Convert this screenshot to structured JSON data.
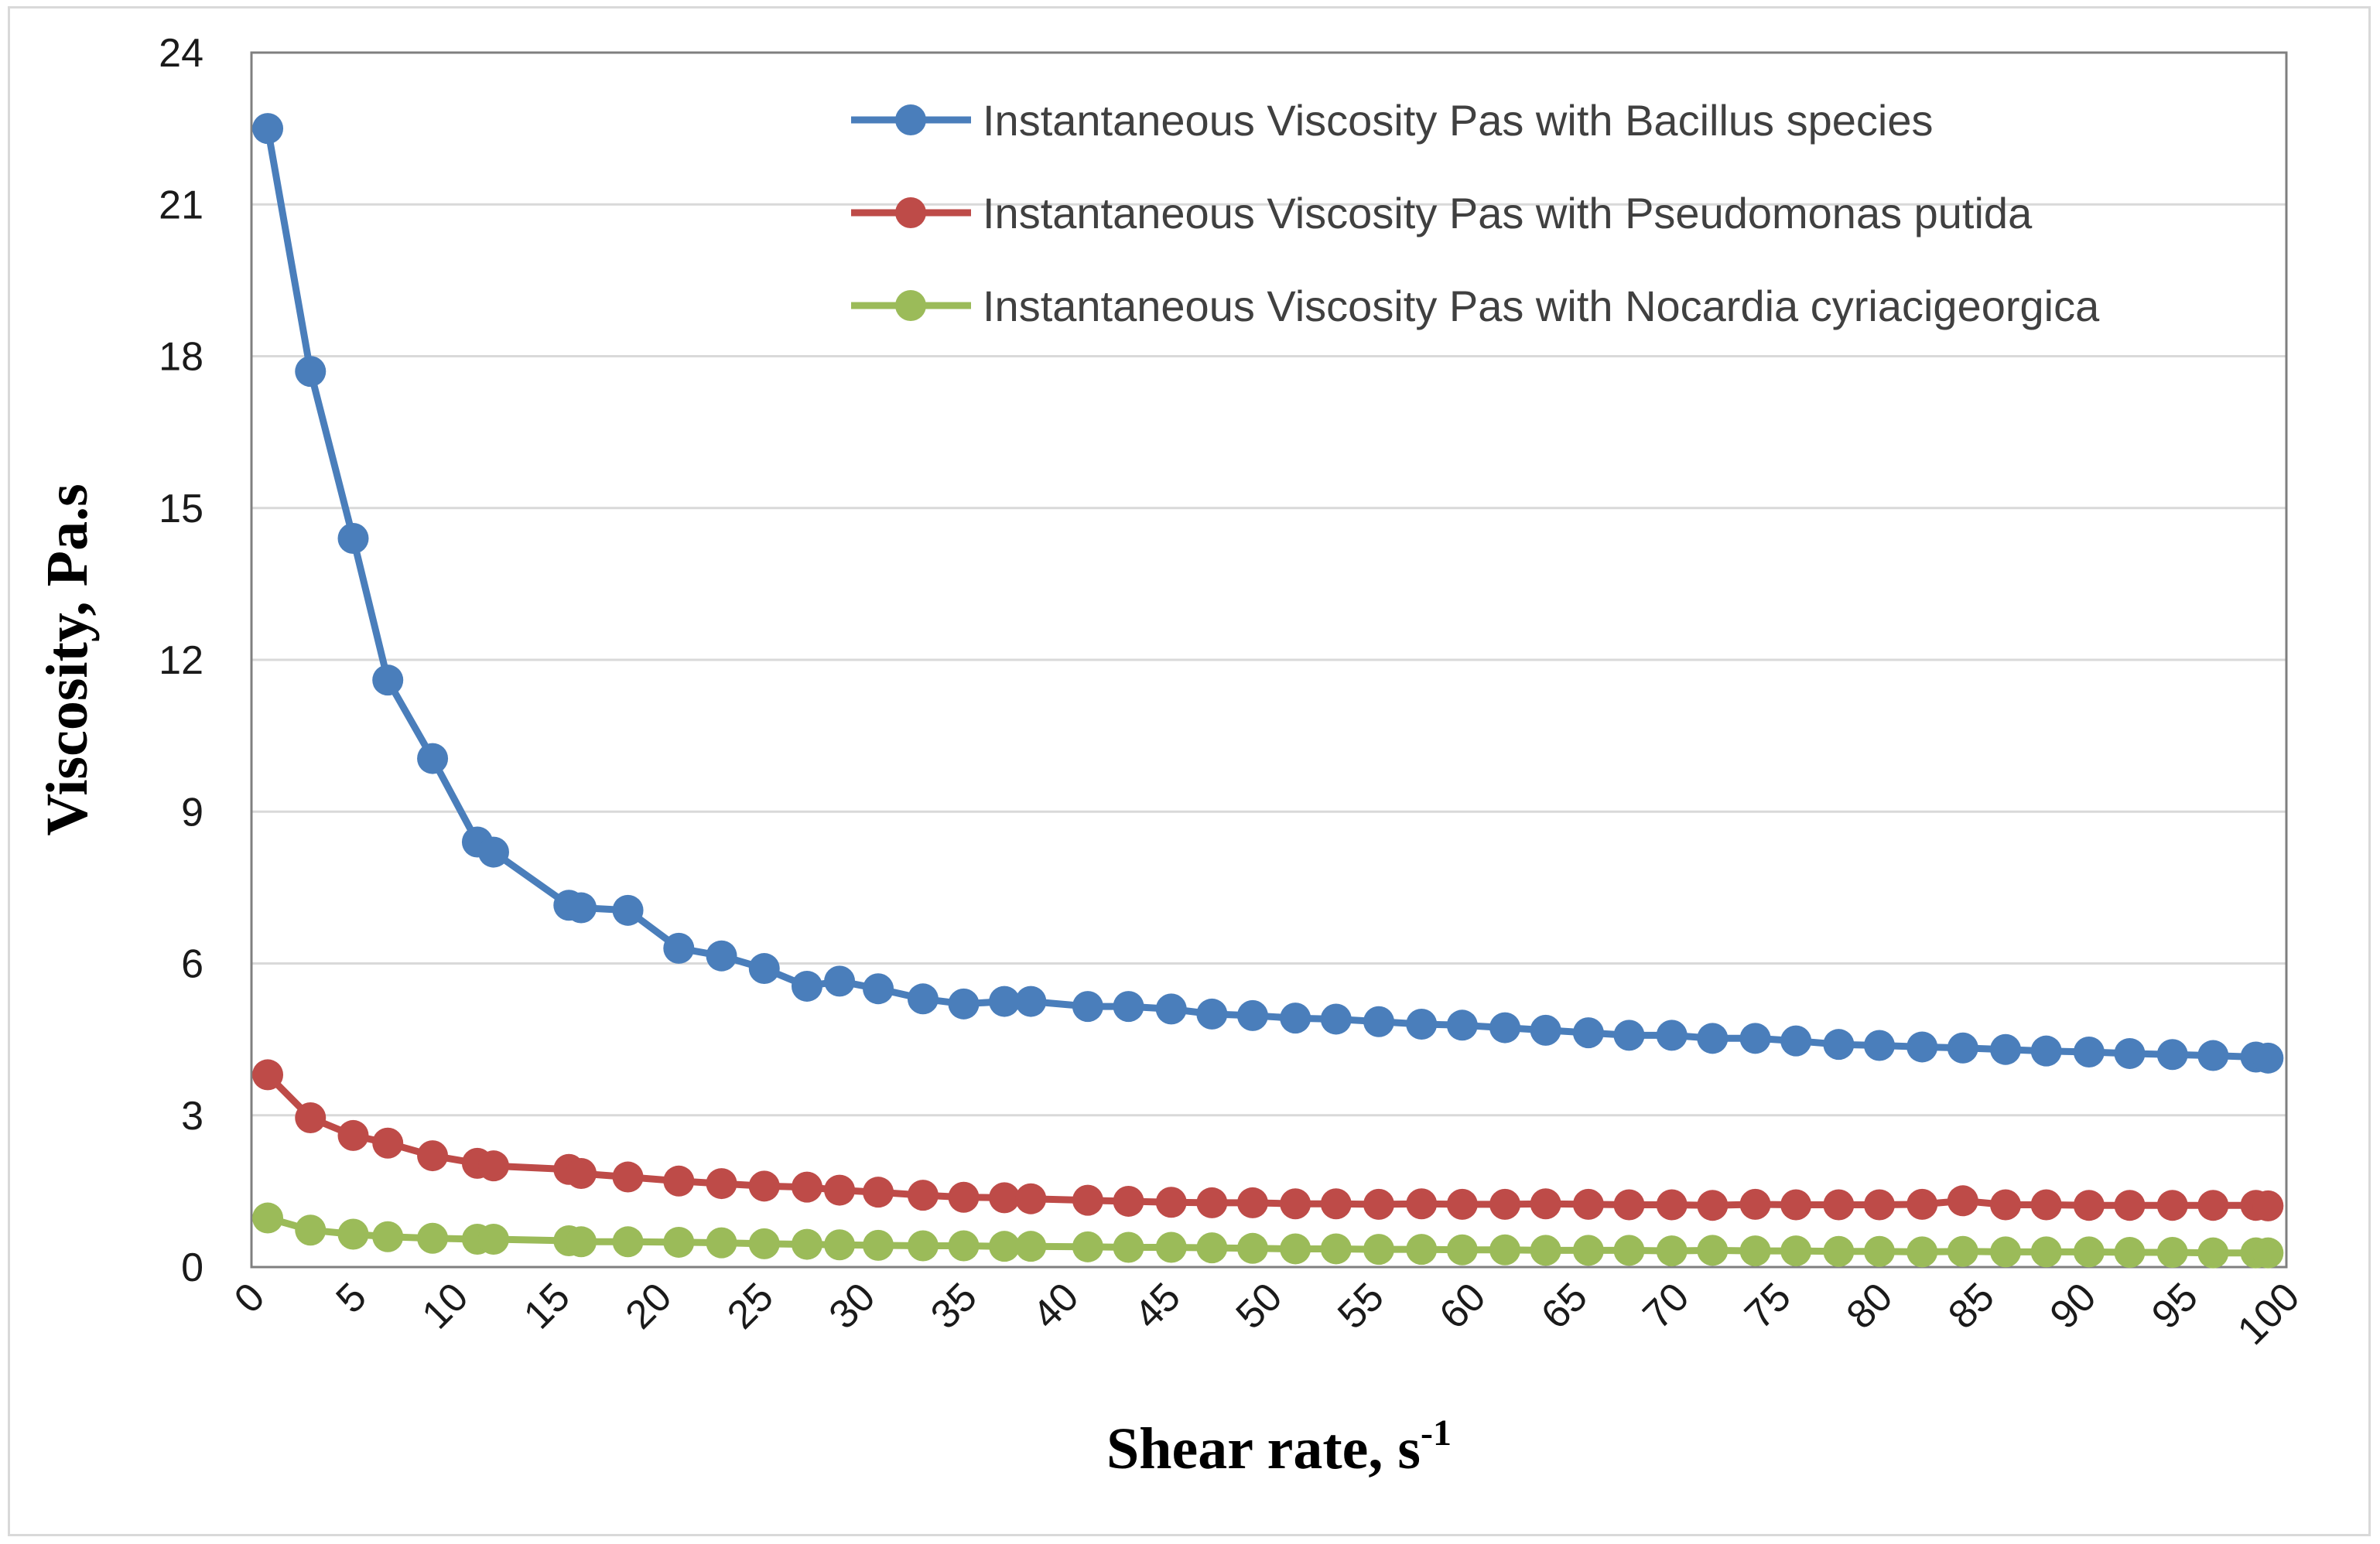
{
  "chart_data": {
    "type": "line",
    "xlabel": "Shear rate, s",
    "xlabel_superscript": "-1",
    "ylabel": "Viscosity, Pa.s",
    "xlim": [
      0,
      100
    ],
    "ylim": [
      0,
      24
    ],
    "xticks": [
      "0",
      "5",
      "10",
      "15",
      "20",
      "25",
      "30",
      "35",
      "40",
      "45",
      "50",
      "55",
      "60",
      "65",
      "70",
      "75",
      "80",
      "85",
      "90",
      "95",
      "100"
    ],
    "yticks": [
      "0",
      "3",
      "6",
      "9",
      "12",
      "15",
      "18",
      "21",
      "24"
    ],
    "grid": "horizontal",
    "legend_position": "top-right",
    "series": [
      {
        "name": "Instantaneous Viscosity Pas with Bacillus species",
        "color": "#4a7ebb",
        "points": [
          [
            0.8,
            22.5
          ],
          [
            2.9,
            17.7
          ],
          [
            5.0,
            14.4
          ],
          [
            6.7,
            11.6
          ],
          [
            8.9,
            10.05
          ],
          [
            11.1,
            8.4
          ],
          [
            11.9,
            8.2
          ],
          [
            15.6,
            7.15
          ],
          [
            16.2,
            7.1
          ],
          [
            18.5,
            7.05
          ],
          [
            21.0,
            6.3
          ],
          [
            23.1,
            6.15
          ],
          [
            25.2,
            5.9
          ],
          [
            27.3,
            5.55
          ],
          [
            28.9,
            5.65
          ],
          [
            30.8,
            5.5
          ],
          [
            33.0,
            5.3
          ],
          [
            35.0,
            5.2
          ],
          [
            37.0,
            5.25
          ],
          [
            38.3,
            5.25
          ],
          [
            41.1,
            5.15
          ],
          [
            43.1,
            5.15
          ],
          [
            45.2,
            5.1
          ],
          [
            47.2,
            5.0
          ],
          [
            49.2,
            4.97
          ],
          [
            51.3,
            4.92
          ],
          [
            53.3,
            4.9
          ],
          [
            55.4,
            4.85
          ],
          [
            57.5,
            4.8
          ],
          [
            59.5,
            4.78
          ],
          [
            61.6,
            4.73
          ],
          [
            63.6,
            4.68
          ],
          [
            65.7,
            4.63
          ],
          [
            67.7,
            4.58
          ],
          [
            69.8,
            4.58
          ],
          [
            71.8,
            4.52
          ],
          [
            73.9,
            4.52
          ],
          [
            75.9,
            4.47
          ],
          [
            78.0,
            4.4
          ],
          [
            80.0,
            4.38
          ],
          [
            82.1,
            4.35
          ],
          [
            84.1,
            4.33
          ],
          [
            86.2,
            4.3
          ],
          [
            88.2,
            4.27
          ],
          [
            90.3,
            4.25
          ],
          [
            92.3,
            4.22
          ],
          [
            94.4,
            4.2
          ],
          [
            96.4,
            4.18
          ],
          [
            98.5,
            4.15
          ],
          [
            99.1,
            4.13
          ]
        ]
      },
      {
        "name": "Instantaneous Viscosity Pas with Pseudomonas putida",
        "color": "#be4b48",
        "points": [
          [
            0.8,
            3.8
          ],
          [
            2.9,
            2.95
          ],
          [
            5.0,
            2.6
          ],
          [
            6.7,
            2.45
          ],
          [
            8.9,
            2.2
          ],
          [
            11.1,
            2.05
          ],
          [
            11.9,
            2.0
          ],
          [
            15.6,
            1.93
          ],
          [
            16.2,
            1.85
          ],
          [
            18.5,
            1.78
          ],
          [
            21.0,
            1.7
          ],
          [
            23.1,
            1.65
          ],
          [
            25.2,
            1.6
          ],
          [
            27.3,
            1.58
          ],
          [
            28.9,
            1.52
          ],
          [
            30.8,
            1.48
          ],
          [
            33.0,
            1.42
          ],
          [
            35.0,
            1.38
          ],
          [
            37.0,
            1.37
          ],
          [
            38.3,
            1.35
          ],
          [
            41.1,
            1.32
          ],
          [
            43.1,
            1.3
          ],
          [
            45.2,
            1.28
          ],
          [
            47.2,
            1.27
          ],
          [
            49.2,
            1.27
          ],
          [
            51.3,
            1.25
          ],
          [
            53.3,
            1.25
          ],
          [
            55.4,
            1.24
          ],
          [
            57.5,
            1.25
          ],
          [
            59.5,
            1.24
          ],
          [
            61.6,
            1.24
          ],
          [
            63.6,
            1.25
          ],
          [
            65.7,
            1.24
          ],
          [
            67.7,
            1.23
          ],
          [
            69.8,
            1.23
          ],
          [
            71.8,
            1.22
          ],
          [
            73.9,
            1.24
          ],
          [
            75.9,
            1.23
          ],
          [
            78.0,
            1.23
          ],
          [
            80.0,
            1.23
          ],
          [
            82.1,
            1.24
          ],
          [
            84.1,
            1.31
          ],
          [
            86.2,
            1.23
          ],
          [
            88.2,
            1.23
          ],
          [
            90.3,
            1.22
          ],
          [
            92.3,
            1.22
          ],
          [
            94.4,
            1.22
          ],
          [
            96.4,
            1.22
          ],
          [
            98.5,
            1.22
          ],
          [
            99.1,
            1.21
          ]
        ]
      },
      {
        "name": "Instantaneous Viscosity Pas with Nocardia cyriacigeorgica",
        "color": "#9bbb59",
        "points": [
          [
            0.8,
            0.97
          ],
          [
            2.9,
            0.73
          ],
          [
            5.0,
            0.65
          ],
          [
            6.7,
            0.6
          ],
          [
            8.9,
            0.57
          ],
          [
            11.1,
            0.55
          ],
          [
            11.9,
            0.55
          ],
          [
            15.6,
            0.52
          ],
          [
            16.2,
            0.5
          ],
          [
            18.5,
            0.5
          ],
          [
            21.0,
            0.49
          ],
          [
            23.1,
            0.48
          ],
          [
            25.2,
            0.46
          ],
          [
            27.3,
            0.45
          ],
          [
            28.9,
            0.44
          ],
          [
            30.8,
            0.43
          ],
          [
            33.0,
            0.42
          ],
          [
            35.0,
            0.42
          ],
          [
            37.0,
            0.41
          ],
          [
            38.3,
            0.41
          ],
          [
            41.1,
            0.4
          ],
          [
            43.1,
            0.39
          ],
          [
            45.2,
            0.39
          ],
          [
            47.2,
            0.38
          ],
          [
            49.2,
            0.37
          ],
          [
            51.3,
            0.36
          ],
          [
            53.3,
            0.36
          ],
          [
            55.4,
            0.35
          ],
          [
            57.5,
            0.35
          ],
          [
            59.5,
            0.34
          ],
          [
            61.6,
            0.34
          ],
          [
            63.6,
            0.33
          ],
          [
            65.7,
            0.33
          ],
          [
            67.7,
            0.33
          ],
          [
            69.8,
            0.32
          ],
          [
            71.8,
            0.33
          ],
          [
            73.9,
            0.32
          ],
          [
            75.9,
            0.32
          ],
          [
            78.0,
            0.31
          ],
          [
            80.0,
            0.31
          ],
          [
            82.1,
            0.3
          ],
          [
            84.1,
            0.31
          ],
          [
            86.2,
            0.3
          ],
          [
            88.2,
            0.3
          ],
          [
            90.3,
            0.3
          ],
          [
            92.3,
            0.29
          ],
          [
            94.4,
            0.29
          ],
          [
            96.4,
            0.28
          ],
          [
            98.5,
            0.28
          ],
          [
            99.1,
            0.28
          ]
        ]
      }
    ]
  }
}
